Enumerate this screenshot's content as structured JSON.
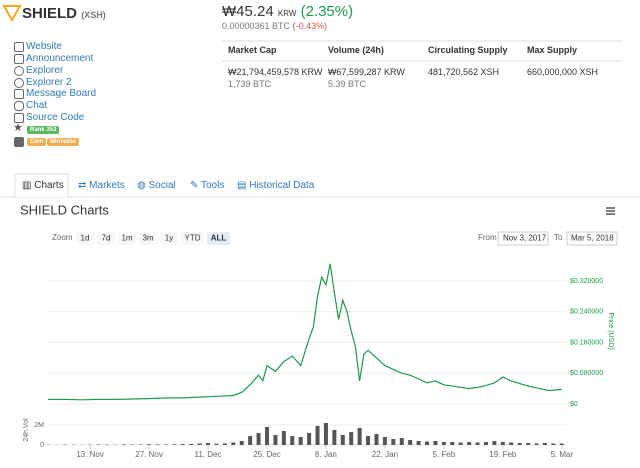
{
  "header": {
    "name": "SHIELD",
    "symbol": "(XSH)",
    "price": "₩45.24",
    "currency": "KRW",
    "change": "(2.35%)",
    "btc_price": "0.00000361 BTC",
    "btc_change": "(-0.43%)"
  },
  "links": [
    "Website",
    "Announcement",
    "Explorer",
    "Explorer 2",
    "Message Board",
    "Chat",
    "Source Code"
  ],
  "rank": "Rank 353",
  "tags": [
    "Coin",
    "Mineable"
  ],
  "stats": {
    "headers": [
      "Market Cap",
      "Volume (24h)",
      "Circulating Supply",
      "Max Supply"
    ],
    "values": [
      "₩21,794,459,578 KRW",
      "₩67,599,287 KRW",
      "481,720,562 XSH",
      "660,000,000 XSH"
    ],
    "btc": [
      "1,739 BTC",
      "5.39 BTC"
    ]
  },
  "tabs": [
    "Charts",
    "Markets",
    "Social",
    "Tools",
    "Historical Data"
  ],
  "chart_data": [
    {
      "type": "line",
      "title": "SHIELD Charts",
      "zoom_label": "Zoom",
      "zoom_buttons": [
        "1d",
        "7d",
        "1m",
        "3m",
        "1y",
        "YTD",
        "ALL"
      ],
      "from_label": "From",
      "from": "Nov 3, 2017",
      "to_label": "To",
      "to": "Mar 5, 2018",
      "ylabel": "Price (USD)",
      "color": "#1e9a4f",
      "x": [
        0,
        4,
        8,
        12,
        16,
        20,
        24,
        28,
        32,
        36,
        40,
        44,
        46,
        48,
        50,
        51,
        52,
        54,
        56,
        58,
        60,
        62,
        63,
        64,
        65,
        66,
        67,
        68,
        69,
        70,
        71,
        72,
        73,
        74,
        75,
        76,
        78,
        80,
        82,
        84,
        86,
        88,
        90,
        92,
        94,
        97,
        100,
        103,
        106,
        108,
        110,
        113,
        116,
        119,
        122
      ],
      "series": [
        {
          "color": "#1e9a4f",
          "values": [
            0.012,
            0.012,
            0.011,
            0.012,
            0.012,
            0.013,
            0.014,
            0.016,
            0.016,
            0.018,
            0.02,
            0.022,
            0.03,
            0.05,
            0.075,
            0.06,
            0.1,
            0.085,
            0.11,
            0.125,
            0.1,
            0.17,
            0.2,
            0.28,
            0.33,
            0.31,
            0.365,
            0.29,
            0.22,
            0.27,
            0.24,
            0.19,
            0.15,
            0.06,
            0.13,
            0.14,
            0.12,
            0.1,
            0.09,
            0.08,
            0.075,
            0.065,
            0.055,
            0.06,
            0.05,
            0.045,
            0.04,
            0.045,
            0.055,
            0.07,
            0.06,
            0.05,
            0.042,
            0.035,
            0.038
          ]
        }
      ],
      "xlim": [
        0,
        123
      ],
      "ylim": [
        0,
        0.38
      ],
      "yticks": [
        {
          "value": 0,
          "label": "$0"
        },
        {
          "value": 0.08,
          "label": "$0.080000"
        },
        {
          "value": 0.16,
          "label": "$0.160000"
        },
        {
          "value": 0.24,
          "label": "$0.240000"
        },
        {
          "value": 0.32,
          "label": "$0.320000"
        }
      ],
      "grid": true
    },
    {
      "type": "bar",
      "ylabel": "24h Vol",
      "color": "#555555",
      "x": [
        0,
        2,
        4,
        6,
        8,
        10,
        12,
        14,
        16,
        18,
        20,
        22,
        24,
        26,
        28,
        30,
        32,
        34,
        36,
        38,
        40,
        42,
        44,
        46,
        48,
        50,
        52,
        54,
        56,
        58,
        60,
        62,
        64,
        66,
        68,
        70,
        72,
        74,
        76,
        78,
        80,
        82,
        84,
        86,
        88,
        90,
        92,
        94,
        96,
        98,
        100,
        102,
        104,
        106,
        108,
        110,
        112,
        114,
        116,
        118,
        120,
        122
      ],
      "values": [
        30000,
        20000,
        40000,
        30000,
        20000,
        30000,
        50000,
        40000,
        30000,
        60000,
        40000,
        50000,
        80000,
        60000,
        50000,
        70000,
        90000,
        100000,
        150000,
        200000,
        120000,
        150000,
        250000,
        400000,
        900000,
        1200000,
        1800000,
        1000000,
        1400000,
        900000,
        800000,
        1200000,
        1900000,
        2200000,
        1500000,
        1000000,
        1300000,
        1700000,
        900000,
        1100000,
        800000,
        600000,
        700000,
        500000,
        400000,
        350000,
        400000,
        300000,
        300000,
        250000,
        300000,
        250000,
        300000,
        400000,
        300000,
        250000,
        200000,
        200000,
        150000,
        200000,
        150000,
        150000
      ],
      "xlim": [
        0,
        123
      ],
      "ylim": [
        0,
        3000000
      ],
      "yticks": [
        0,
        {
          "value": 2000000,
          "label": "2M"
        }
      ],
      "xticks": [
        {
          "value": 10,
          "label": "13. Nov"
        },
        {
          "value": 24,
          "label": "27. Nov"
        },
        {
          "value": 38,
          "label": "11. Dec"
        },
        {
          "value": 52,
          "label": "25. Dec"
        },
        {
          "value": 66,
          "label": "8. Jan"
        },
        {
          "value": 80,
          "label": "22. Jan"
        },
        {
          "value": 94,
          "label": "5. Feb"
        },
        {
          "value": 108,
          "label": "19. Feb"
        },
        {
          "value": 122,
          "label": "5. Mar"
        }
      ]
    }
  ]
}
